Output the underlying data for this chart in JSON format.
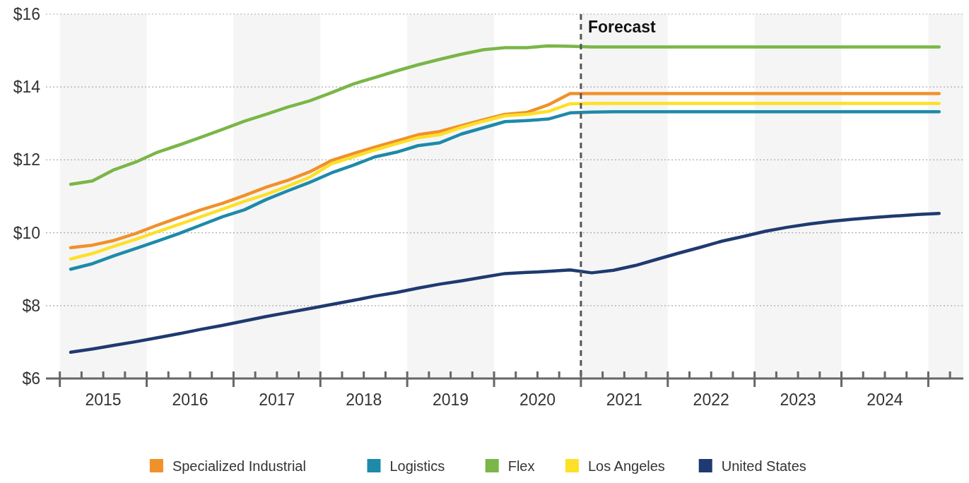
{
  "chart_data": {
    "type": "line",
    "x": [
      2015.125,
      2015.375,
      2015.625,
      2015.875,
      2016.125,
      2016.375,
      2016.625,
      2016.875,
      2017.125,
      2017.375,
      2017.625,
      2017.875,
      2018.125,
      2018.375,
      2018.625,
      2018.875,
      2019.125,
      2019.375,
      2019.625,
      2019.875,
      2020.125,
      2020.375,
      2020.625,
      2020.875,
      2021.125,
      2021.375,
      2021.625,
      2021.875,
      2022.125,
      2022.375,
      2022.625,
      2022.875,
      2023.125,
      2023.375,
      2023.625,
      2023.875,
      2024.125,
      2024.375,
      2024.625,
      2024.875,
      2025.125
    ],
    "xlim": [
      2014.84,
      2025.42
    ],
    "xticks": [
      {
        "value": 2015,
        "label": null
      },
      {
        "value": 2015.25,
        "label": null
      },
      {
        "value": 2015.5,
        "label": "2015"
      },
      {
        "value": 2015.75,
        "label": null
      },
      {
        "value": 2016,
        "label": null
      },
      {
        "value": 2016.25,
        "label": null
      },
      {
        "value": 2016.5,
        "label": "2016"
      },
      {
        "value": 2016.75,
        "label": null
      },
      {
        "value": 2017,
        "label": null
      },
      {
        "value": 2017.25,
        "label": null
      },
      {
        "value": 2017.5,
        "label": "2017"
      },
      {
        "value": 2017.75,
        "label": null
      },
      {
        "value": 2018,
        "label": null
      },
      {
        "value": 2018.25,
        "label": null
      },
      {
        "value": 2018.5,
        "label": "2018"
      },
      {
        "value": 2018.75,
        "label": null
      },
      {
        "value": 2019,
        "label": null
      },
      {
        "value": 2019.25,
        "label": null
      },
      {
        "value": 2019.5,
        "label": "2019"
      },
      {
        "value": 2019.75,
        "label": null
      },
      {
        "value": 2020,
        "label": null
      },
      {
        "value": 2020.25,
        "label": null
      },
      {
        "value": 2020.5,
        "label": "2020"
      },
      {
        "value": 2020.75,
        "label": null
      },
      {
        "value": 2021,
        "label": null
      },
      {
        "value": 2021.25,
        "label": null
      },
      {
        "value": 2021.5,
        "label": "2021"
      },
      {
        "value": 2021.75,
        "label": null
      },
      {
        "value": 2022,
        "label": null
      },
      {
        "value": 2022.25,
        "label": null
      },
      {
        "value": 2022.5,
        "label": "2022"
      },
      {
        "value": 2022.75,
        "label": null
      },
      {
        "value": 2023,
        "label": null
      },
      {
        "value": 2023.25,
        "label": null
      },
      {
        "value": 2023.5,
        "label": "2023"
      },
      {
        "value": 2023.75,
        "label": null
      },
      {
        "value": 2024,
        "label": null
      },
      {
        "value": 2024.25,
        "label": null
      },
      {
        "value": 2024.5,
        "label": "2024"
      },
      {
        "value": 2024.75,
        "label": null
      },
      {
        "value": 2025,
        "label": null
      },
      {
        "value": 2025.25,
        "label": null
      }
    ],
    "ylim": [
      6,
      16
    ],
    "yticks": [
      {
        "value": 6,
        "label": "$6"
      },
      {
        "value": 8,
        "label": "$8"
      },
      {
        "value": 10,
        "label": "$10"
      },
      {
        "value": 12,
        "label": "$12"
      },
      {
        "value": 14,
        "label": "$14"
      },
      {
        "value": 16,
        "label": "$16"
      }
    ],
    "grid": "y",
    "legend": "bottom",
    "series": [
      {
        "name": "Specialized Industrial",
        "color": "#f0912a",
        "values": [
          9.59,
          9.66,
          9.79,
          9.98,
          10.21,
          10.42,
          10.63,
          10.81,
          11.02,
          11.25,
          11.44,
          11.67,
          11.98,
          12.17,
          12.35,
          12.52,
          12.69,
          12.78,
          12.94,
          13.1,
          13.25,
          13.3,
          13.51,
          13.82,
          13.82,
          13.82,
          13.82,
          13.82,
          13.82,
          13.82,
          13.82,
          13.82,
          13.82,
          13.82,
          13.82,
          13.82,
          13.82,
          13.82,
          13.82,
          13.82,
          13.82
        ]
      },
      {
        "name": "Logistics",
        "color": "#1e8aaa",
        "values": [
          9.0,
          9.15,
          9.37,
          9.57,
          9.77,
          9.98,
          10.21,
          10.44,
          10.63,
          10.91,
          11.15,
          11.38,
          11.64,
          11.85,
          12.08,
          12.21,
          12.39,
          12.47,
          12.71,
          12.88,
          13.05,
          13.08,
          13.12,
          13.29,
          13.31,
          13.32,
          13.32,
          13.32,
          13.32,
          13.32,
          13.32,
          13.32,
          13.32,
          13.32,
          13.32,
          13.32,
          13.32,
          13.32,
          13.32,
          13.32,
          13.32
        ]
      },
      {
        "name": "Flex",
        "color": "#7ab648",
        "values": [
          11.33,
          11.42,
          11.73,
          11.94,
          12.21,
          12.41,
          12.62,
          12.84,
          13.06,
          13.25,
          13.45,
          13.62,
          13.84,
          14.08,
          14.26,
          14.44,
          14.61,
          14.76,
          14.9,
          15.02,
          15.08,
          15.08,
          15.13,
          15.12,
          15.1,
          15.1,
          15.1,
          15.1,
          15.1,
          15.1,
          15.1,
          15.1,
          15.1,
          15.1,
          15.1,
          15.1,
          15.1,
          15.1,
          15.1,
          15.1,
          15.1
        ]
      },
      {
        "name": "Los Angeles",
        "color": "#fde029",
        "values": [
          9.28,
          9.43,
          9.63,
          9.82,
          10.03,
          10.23,
          10.44,
          10.65,
          10.86,
          11.05,
          11.28,
          11.52,
          11.89,
          12.08,
          12.27,
          12.44,
          12.61,
          12.69,
          12.89,
          13.06,
          13.21,
          13.25,
          13.33,
          13.54,
          13.55,
          13.55,
          13.55,
          13.55,
          13.55,
          13.55,
          13.55,
          13.55,
          13.55,
          13.55,
          13.55,
          13.55,
          13.55,
          13.55,
          13.55,
          13.55,
          13.55
        ]
      },
      {
        "name": "United States",
        "color": "#1f3a70",
        "values": [
          6.72,
          6.81,
          6.91,
          7.01,
          7.12,
          7.23,
          7.35,
          7.46,
          7.58,
          7.7,
          7.81,
          7.92,
          8.03,
          8.14,
          8.26,
          8.36,
          8.48,
          8.59,
          8.68,
          8.78,
          8.88,
          8.91,
          8.94,
          8.98,
          8.9,
          8.97,
          9.1,
          9.27,
          9.44,
          9.6,
          9.77,
          9.9,
          10.04,
          10.15,
          10.24,
          10.31,
          10.37,
          10.42,
          10.46,
          10.5,
          10.53
        ]
      }
    ],
    "ref_lines": [
      {
        "axis": "x",
        "value": 2021,
        "label": "Forecast",
        "line_style": "dashed",
        "color": "#555555"
      }
    ],
    "bands": [
      {
        "axis": "x",
        "from": 2015,
        "to": 2016,
        "color": "#f5f5f5"
      },
      {
        "axis": "x",
        "from": 2017,
        "to": 2018,
        "color": "#f5f5f5"
      },
      {
        "axis": "x",
        "from": 2019,
        "to": 2020,
        "color": "#f5f5f5"
      },
      {
        "axis": "x",
        "from": 2021,
        "to": 2022,
        "color": "#f5f5f5"
      },
      {
        "axis": "x",
        "from": 2023,
        "to": 2024,
        "color": "#f5f5f5"
      },
      {
        "axis": "x",
        "from": 2025,
        "to": 2025.42,
        "color": "#f5f5f5"
      }
    ]
  }
}
